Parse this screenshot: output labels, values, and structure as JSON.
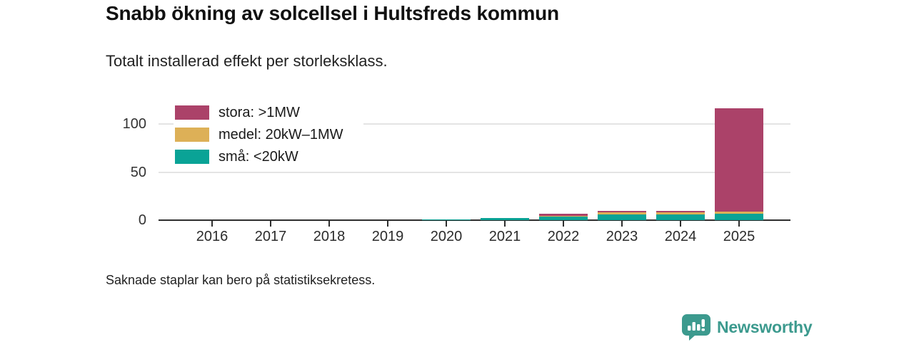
{
  "header": {
    "title": "Snabb ökning av solcellsel i Hultsfreds kommun",
    "subtitle": "Totalt installerad effekt per storleksklass."
  },
  "footer": {
    "note": "Saknade staplar kan bero på statistiksekretess.",
    "brand_name": "Newsworthy"
  },
  "colors": {
    "stora": "#ab4269",
    "medel": "#ddb057",
    "sma": "#0aa396",
    "axis": "#2e2e2e",
    "grid": "#e4e4e4",
    "brand": "#3c9a8e"
  },
  "chart_data": {
    "type": "bar",
    "stacked": true,
    "title": "Snabb ökning av solcellsel i Hultsfreds kommun",
    "subtitle": "Totalt installerad effekt per storleksklass.",
    "xlabel": "",
    "ylabel": "",
    "categories": [
      "2016",
      "2017",
      "2018",
      "2019",
      "2020",
      "2021",
      "2022",
      "2023",
      "2024",
      "2025"
    ],
    "series": [
      {
        "name": "stora: >1MW",
        "key": "stora",
        "color": "#ab4269",
        "values": [
          0,
          0,
          0,
          0,
          0,
          0,
          2,
          2,
          2,
          107
        ]
      },
      {
        "name": "medel: 20kW–1MW",
        "key": "medel",
        "color": "#ddb057",
        "values": [
          0,
          0,
          0,
          0,
          0,
          0,
          1.2,
          2,
          2,
          2.5
        ]
      },
      {
        "name": "små: <20kW",
        "key": "sma",
        "color": "#0aa396",
        "values": [
          0,
          0,
          0,
          0,
          1,
          2,
          3.5,
          6,
          6,
          6.5
        ]
      }
    ],
    "yticks": [
      "0",
      "50",
      "100"
    ],
    "ylim": [
      0,
      120
    ],
    "grid": "horizontal",
    "legend_position": "top-left",
    "note": "Saknade staplar kan bero på statistiksekretess."
  }
}
